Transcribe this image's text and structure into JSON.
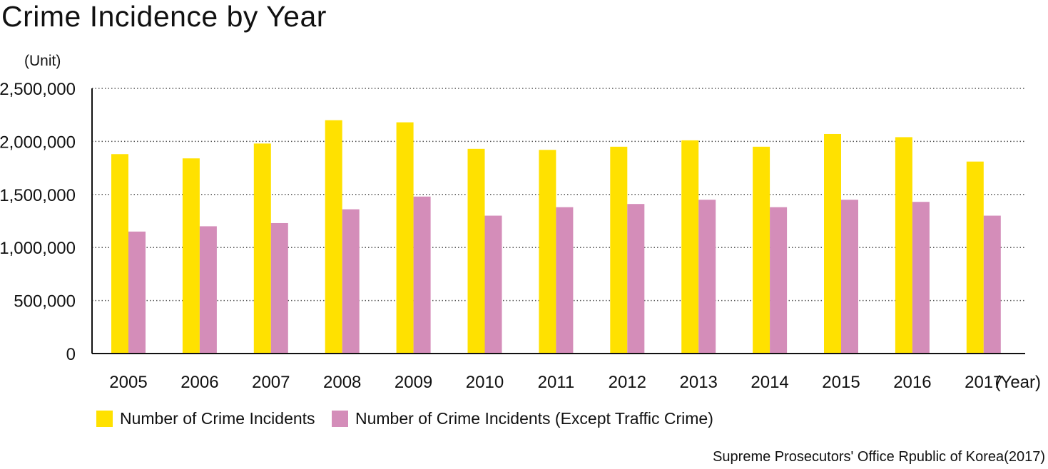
{
  "chart_data": {
    "type": "bar",
    "title": "Crime Incidence by Year",
    "unit_label": "(Unit)",
    "xlabel": "(Year)",
    "ylabel": "",
    "ylim": [
      0,
      2500000
    ],
    "yticks": [
      0,
      500000,
      1000000,
      1500000,
      2000000,
      2500000
    ],
    "ytick_labels": [
      "0",
      "500,000",
      "1,000,000",
      "1,500,000",
      "2,000,000",
      "2,500,000"
    ],
    "grid": "dotted horizontal",
    "categories": [
      "2005",
      "2006",
      "2007",
      "2008",
      "2009",
      "2010",
      "2011",
      "2012",
      "2013",
      "2014",
      "2015",
      "2016",
      "2017"
    ],
    "series": [
      {
        "name": "Number of Crime Incidents",
        "color": "#FFE100",
        "values": [
          1880000,
          1840000,
          1980000,
          2200000,
          2180000,
          1930000,
          1920000,
          1950000,
          2010000,
          1950000,
          2070000,
          2040000,
          1810000
        ]
      },
      {
        "name": "Number of Crime Incidents (Except Traffic Crime)",
        "color": "#D48DB9",
        "values": [
          1150000,
          1200000,
          1230000,
          1360000,
          1480000,
          1300000,
          1380000,
          1410000,
          1450000,
          1380000,
          1450000,
          1430000,
          1300000
        ]
      }
    ],
    "legend_position": "bottom-left",
    "source": "Supreme Prosecutors' Office Rpublic of Korea(2017)"
  }
}
